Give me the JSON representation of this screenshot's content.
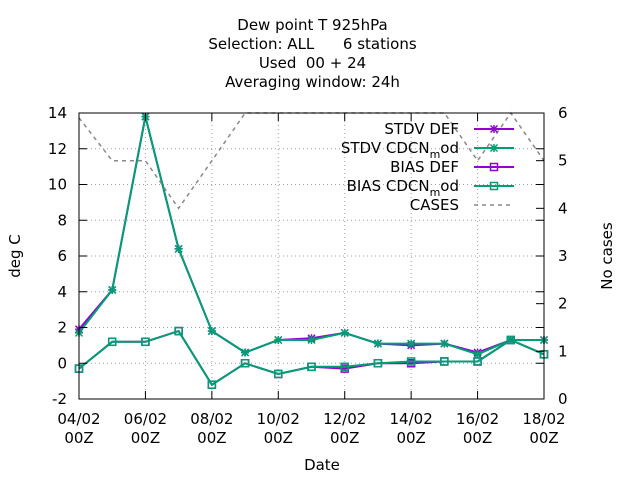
{
  "chart_data": {
    "type": "line",
    "title_lines": [
      "Dew point T 925hPa",
      "Selection: ALL      6 stations",
      "Used  00 + 24",
      "Averaging window: 24h"
    ],
    "xlabel": "Date",
    "ylabel": "deg C",
    "y2label": "No cases",
    "ylim": [
      -2,
      14
    ],
    "y2lim": [
      0,
      6
    ],
    "yticks": [
      "-2",
      "0",
      "2",
      "4",
      "6",
      "8",
      "10",
      "12",
      "14"
    ],
    "y2ticks": [
      "0",
      "1",
      "2",
      "3",
      "4",
      "5",
      "6"
    ],
    "xtick_labels": [
      [
        "04/02",
        "00Z"
      ],
      [
        "06/02",
        "00Z"
      ],
      [
        "08/02",
        "00Z"
      ],
      [
        "10/02",
        "00Z"
      ],
      [
        "12/02",
        "00Z"
      ],
      [
        "14/02",
        "00Z"
      ],
      [
        "16/02",
        "00Z"
      ],
      [
        "18/02",
        "00Z"
      ]
    ],
    "x_dates": [
      "04/02",
      "05/02",
      "06/02",
      "07/02",
      "08/02",
      "09/02",
      "10/02",
      "11/02",
      "12/02",
      "13/02",
      "14/02",
      "15/02",
      "16/02",
      "17/02",
      "18/02"
    ],
    "legend_position": "top-right",
    "series": [
      {
        "name": "STDV DEF",
        "axis": "y",
        "color": "#9400d3",
        "marker": "star",
        "dash": false,
        "values": [
          1.9,
          4.1,
          13.8,
          6.4,
          1.8,
          0.6,
          1.3,
          1.4,
          1.7,
          1.1,
          1.0,
          1.1,
          0.6,
          1.3,
          1.3
        ]
      },
      {
        "name": "STDV CDCN_mod",
        "axis": "y",
        "color": "#009e73",
        "marker": "star",
        "dash": false,
        "values": [
          1.7,
          4.1,
          13.8,
          6.4,
          1.8,
          0.6,
          1.3,
          1.3,
          1.7,
          1.1,
          1.1,
          1.1,
          0.5,
          1.3,
          1.3
        ]
      },
      {
        "name": "BIAS DEF",
        "axis": "y",
        "color": "#9400d3",
        "marker": "square",
        "dash": false,
        "values": [
          -0.3,
          1.2,
          1.2,
          1.8,
          -1.2,
          0.0,
          -0.6,
          -0.2,
          -0.3,
          0.0,
          0.0,
          0.1,
          0.1,
          1.3,
          0.5
        ]
      },
      {
        "name": "BIAS CDCN_mod",
        "axis": "y",
        "color": "#009e73",
        "marker": "square",
        "dash": false,
        "values": [
          -0.3,
          1.2,
          1.2,
          1.8,
          -1.2,
          0.0,
          -0.6,
          -0.2,
          -0.2,
          0.0,
          0.1,
          0.1,
          0.1,
          1.3,
          0.5
        ]
      },
      {
        "name": "CASES",
        "axis": "y2",
        "color": "#888888",
        "marker": "none",
        "dash": true,
        "values": [
          5.9,
          5.0,
          5.0,
          4.0,
          5.0,
          6.0,
          6.0,
          6.0,
          6.0,
          6.0,
          6.0,
          6.0,
          5.0,
          6.0,
          5.0
        ]
      }
    ]
  }
}
